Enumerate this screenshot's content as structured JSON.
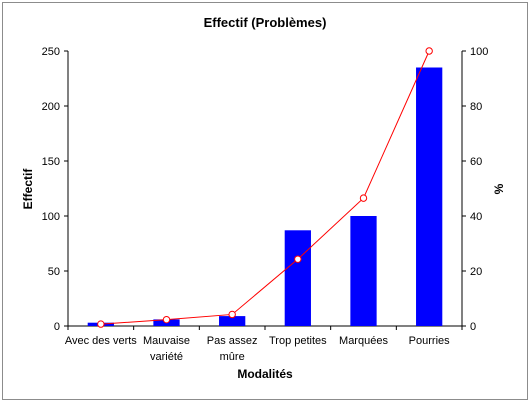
{
  "chart_data": {
    "type": "bar",
    "title": "Effectif  (Problèmes)",
    "xlabel": "Modalités",
    "ylabel": "Effectif",
    "y2label": "%",
    "categories": [
      [
        "Avec des verts"
      ],
      [
        "Mauvaise",
        "variété"
      ],
      [
        "Pas assez",
        "mûre"
      ],
      [
        "Trop petites"
      ],
      [
        "Marquées"
      ],
      [
        "Pourries"
      ]
    ],
    "series": [
      {
        "values": [
          3,
          6,
          9,
          87,
          100,
          235
        ],
        "axis": "left",
        "kind": "bar",
        "color": "#0000ff"
      },
      {
        "values": [
          0.7,
          2.3,
          4.2,
          24.3,
          46.5,
          100
        ],
        "axis": "right",
        "kind": "line",
        "color": "#ff0000"
      }
    ],
    "ylim": [
      0,
      250
    ],
    "yticks": [
      "0",
      "50",
      "100",
      "150",
      "200",
      "250"
    ],
    "y2lim": [
      0,
      100
    ],
    "y2ticks": [
      "0",
      "20",
      "40",
      "60",
      "80",
      "100"
    ],
    "grid": false,
    "legend": "none"
  }
}
